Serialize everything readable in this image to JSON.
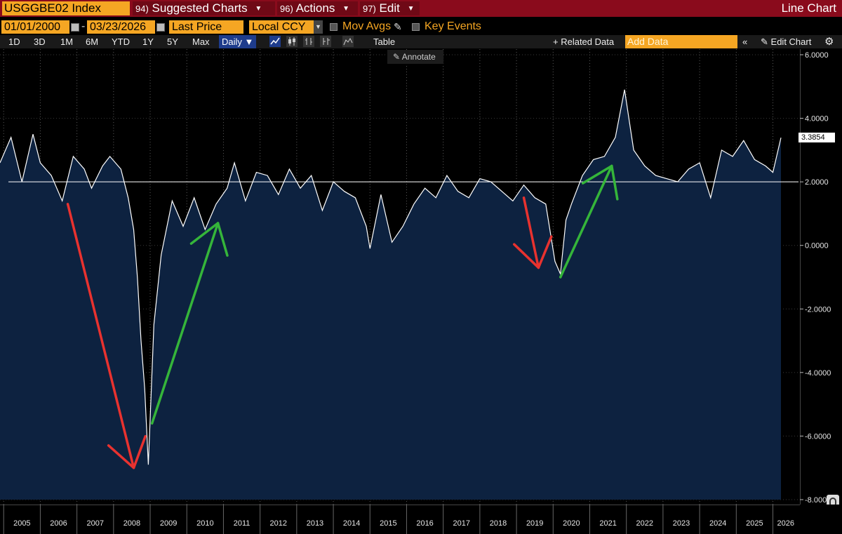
{
  "header": {
    "ticker": "USGGBE02 Index",
    "menus": [
      {
        "num": "94)",
        "label": "Suggested Charts"
      },
      {
        "num": "96)",
        "label": "Actions"
      },
      {
        "num": "97)",
        "label": "Edit"
      }
    ],
    "chart_type": "Line Chart"
  },
  "controls": {
    "start_date": "01/01/2000",
    "end_date": "03/23/2026",
    "field": "Last Price",
    "currency": "Local CCY",
    "mov_avgs": "Mov Avgs",
    "key_events": "Key Events"
  },
  "toolbar": {
    "periods": [
      "1D",
      "3D",
      "1M",
      "6M",
      "YTD",
      "1Y",
      "5Y",
      "Max"
    ],
    "frequency": "Daily",
    "table": "Table",
    "annotate": "Annotate",
    "related": "+ Related Data",
    "add_data_placeholder": "Add Data",
    "edit_chart": "Edit Chart"
  },
  "colors": {
    "accent": "#f5a623",
    "header": "#8a0b1c",
    "fill": "#0d2240",
    "red_arrow": "#e8322f",
    "green_arrow": "#35b53a"
  },
  "chart_data": {
    "type": "area",
    "series_name": "USGGBE02 Index",
    "last_value": "3.3854",
    "ylim": [
      -8,
      6
    ],
    "yticks": [
      "6.0000",
      "4.0000",
      "2.0000",
      "0.0000",
      "-2.0000",
      "-4.0000",
      "-6.0000",
      "-8.0000"
    ],
    "reference_line": 2.0,
    "xlabels": [
      "2005",
      "2006",
      "2007",
      "2008",
      "2009",
      "2010",
      "2011",
      "2012",
      "2013",
      "2014",
      "2015",
      "2016",
      "2017",
      "2018",
      "2019",
      "2020",
      "2021",
      "2022",
      "2023",
      "2024",
      "2025",
      "2026"
    ],
    "x": [
      2004.9,
      2005.2,
      2005.5,
      2005.8,
      2006.0,
      2006.3,
      2006.6,
      2006.9,
      2007.2,
      2007.4,
      2007.7,
      2007.9,
      2008.2,
      2008.4,
      2008.55,
      2008.65,
      2008.75,
      2008.85,
      2008.95,
      2009.1,
      2009.3,
      2009.6,
      2009.9,
      2010.2,
      2010.5,
      2010.8,
      2011.1,
      2011.3,
      2011.6,
      2011.9,
      2012.2,
      2012.5,
      2012.8,
      2013.1,
      2013.4,
      2013.7,
      2014.0,
      2014.3,
      2014.6,
      2014.9,
      2015.0,
      2015.3,
      2015.6,
      2015.9,
      2016.2,
      2016.5,
      2016.8,
      2017.1,
      2017.4,
      2017.7,
      2018.0,
      2018.3,
      2018.6,
      2018.9,
      2019.2,
      2019.5,
      2019.8,
      2020.05,
      2020.2,
      2020.35,
      2020.5,
      2020.8,
      2021.1,
      2021.4,
      2021.7,
      2021.95,
      2022.2,
      2022.5,
      2022.8,
      2023.1,
      2023.4,
      2023.7,
      2024.0,
      2024.3,
      2024.6,
      2024.9,
      2025.2,
      2025.5,
      2025.8,
      2026.0,
      2026.22
    ],
    "y": [
      2.6,
      3.4,
      2.0,
      3.5,
      2.6,
      2.2,
      1.4,
      2.8,
      2.4,
      1.8,
      2.5,
      2.8,
      2.4,
      1.5,
      0.5,
      -1.0,
      -3.0,
      -4.5,
      -6.9,
      -2.5,
      -0.3,
      1.4,
      0.6,
      1.5,
      0.5,
      1.3,
      1.8,
      2.6,
      1.4,
      2.3,
      2.2,
      1.6,
      2.4,
      1.8,
      2.2,
      1.1,
      2.0,
      1.7,
      1.5,
      0.6,
      -0.1,
      1.6,
      0.1,
      0.6,
      1.3,
      1.8,
      1.5,
      2.2,
      1.7,
      1.5,
      2.1,
      2.0,
      1.7,
      1.4,
      1.9,
      1.5,
      1.3,
      -0.5,
      -0.9,
      0.8,
      1.3,
      2.2,
      2.7,
      2.8,
      3.4,
      4.9,
      3.0,
      2.5,
      2.2,
      2.1,
      2.0,
      2.4,
      2.6,
      1.5,
      3.0,
      2.8,
      3.3,
      2.7,
      2.5,
      2.3,
      3.39
    ],
    "annotations": [
      {
        "type": "arrow",
        "color": "red",
        "from": [
          2006.75,
          1.3
        ],
        "to": [
          2008.55,
          -7.0
        ]
      },
      {
        "type": "arrow",
        "color": "green",
        "from": [
          2009.05,
          -5.6
        ],
        "to": [
          2010.85,
          0.7
        ]
      },
      {
        "type": "arrow",
        "color": "red",
        "from": [
          2019.2,
          1.5
        ],
        "to": [
          2019.6,
          -0.7
        ]
      },
      {
        "type": "arrow",
        "color": "green",
        "from": [
          2020.2,
          -1.0
        ],
        "to": [
          2021.6,
          2.5
        ]
      }
    ]
  }
}
